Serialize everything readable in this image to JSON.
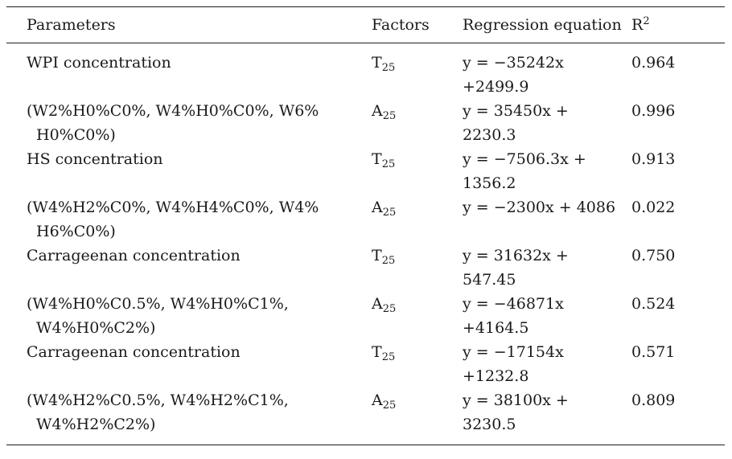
{
  "table": {
    "headers": {
      "parameters": "Parameters",
      "factors": "Factors",
      "equation": "Regression equation",
      "r2_base": "R",
      "r2_sup": "2"
    },
    "rows": [
      {
        "param1": "WPI concentration",
        "param2": "",
        "factor": "T",
        "factor_sub": "25",
        "eq1": "y = −35242x",
        "eq2": "+2499.9",
        "r2": "0.964"
      },
      {
        "param1": "(W2%H0%C0%, W4%H0%C0%, W6%",
        "param2": "H0%C0%)",
        "factor": "A",
        "factor_sub": "25",
        "eq1": "y = 35450x +",
        "eq2": "2230.3",
        "r2": "0.996"
      },
      {
        "param1": "HS concentration",
        "param2": "",
        "factor": "T",
        "factor_sub": "25",
        "eq1": "y = −7506.3x +",
        "eq2": "1356.2",
        "r2": "0.913"
      },
      {
        "param1": "(W4%H2%C0%, W4%H4%C0%, W4%",
        "param2": "H6%C0%)",
        "factor": "A",
        "factor_sub": "25",
        "eq1": "y = −2300x + 4086",
        "eq2": "",
        "r2": "0.022"
      },
      {
        "param1": "Carrageenan concentration",
        "param2": "",
        "factor": "T",
        "factor_sub": "25",
        "eq1": "y = 31632x +",
        "eq2": "547.45",
        "r2": "0.750"
      },
      {
        "param1": "(W4%H0%C0.5%, W4%H0%C1%,",
        "param2": "W4%H0%C2%)",
        "factor": "A",
        "factor_sub": "25",
        "eq1": "y = −46871x",
        "eq2": "+4164.5",
        "r2": "0.524"
      },
      {
        "param1": "Carrageenan concentration",
        "param2": "",
        "factor": "T",
        "factor_sub": "25",
        "eq1": "y = −17154x",
        "eq2": "+1232.8",
        "r2": "0.571"
      },
      {
        "param1": "(W4%H2%C0.5%, W4%H2%C1%,",
        "param2": "W4%H2%C2%)",
        "factor": "A",
        "factor_sub": "25",
        "eq1": "y = 38100x +",
        "eq2": "3230.5",
        "r2": "0.809"
      }
    ]
  }
}
